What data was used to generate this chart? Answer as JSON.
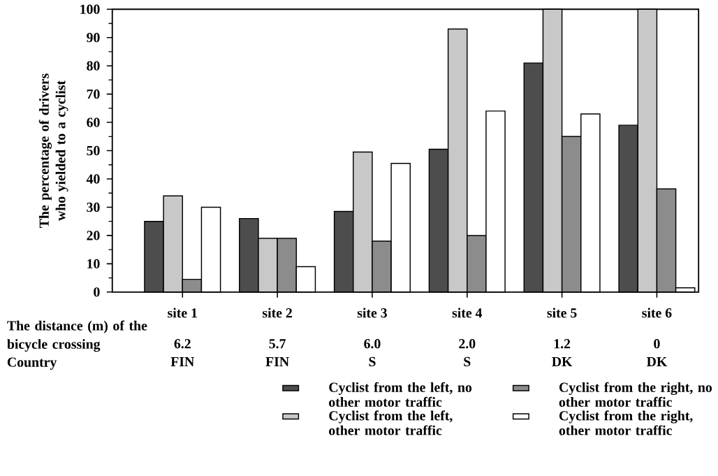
{
  "chart_data": {
    "type": "bar",
    "ylabel": "The percentage of drivers who yielded to a cyclist",
    "categories": [
      "site 1",
      "site 2",
      "site 3",
      "site 4",
      "site 5",
      "site 6"
    ],
    "series": [
      {
        "name": "Cyclist from the left, no other motor traffic",
        "color": "#4d4d4d",
        "values": [
          25,
          26,
          28.5,
          50.5,
          81,
          59
        ]
      },
      {
        "name": "Cyclist from the left, other motor traffic",
        "color": "#c8c8c8",
        "values": [
          34,
          19,
          49.5,
          93,
          100,
          100
        ]
      },
      {
        "name": "Cyclist from the right, no other motor traffic",
        "color": "#8c8c8c",
        "values": [
          4.5,
          19,
          18,
          20,
          55,
          36.5
        ]
      },
      {
        "name": "Cyclist from the right, other motor traffic",
        "color": "#ffffff",
        "values": [
          30,
          9,
          45.5,
          64,
          63,
          1.5
        ]
      }
    ],
    "ylim": [
      0,
      100
    ],
    "yticks": [
      0,
      10,
      20,
      30,
      40,
      50,
      60,
      70,
      80,
      90,
      100
    ],
    "grid": false,
    "legend": "bottom",
    "annotations": [
      "The distance (m) of the bicycle crossing",
      "6.2",
      "5.7",
      "6.0",
      "2.0",
      "1.2",
      "0",
      "Country",
      "FIN",
      "FIN",
      "S",
      "S",
      "DK",
      "DK"
    ]
  }
}
